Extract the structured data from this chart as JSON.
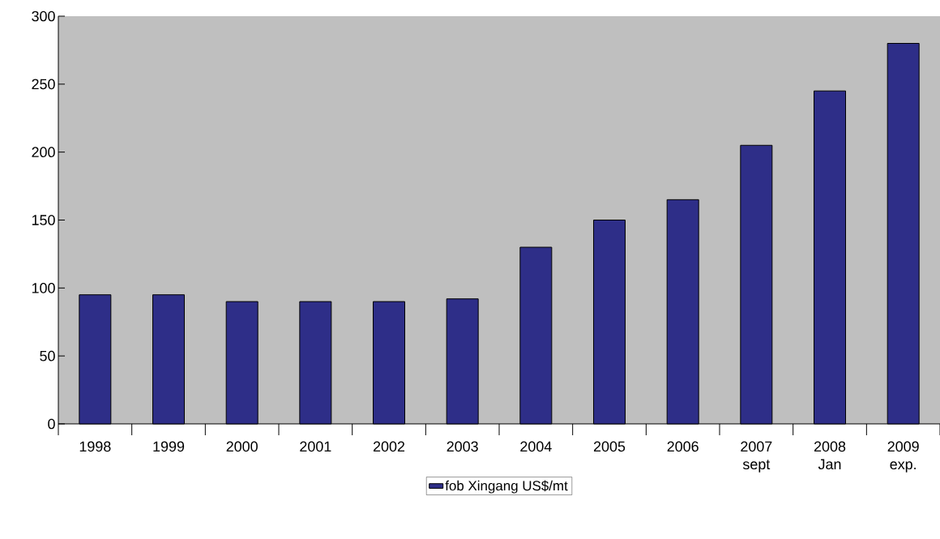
{
  "chart_data": {
    "type": "bar",
    "categories": [
      "1998",
      "1999",
      "2000",
      "2001",
      "2002",
      "2003",
      "2004",
      "2005",
      "2006",
      "2007 sept",
      "2008 Jan",
      "2009 exp."
    ],
    "series": [
      {
        "name": "fob Xingang US$/mt",
        "color": "#2e2e88",
        "values": [
          95,
          95,
          90,
          90,
          90,
          92,
          130,
          150,
          165,
          205,
          245,
          280
        ]
      }
    ],
    "ylim": [
      0,
      300
    ],
    "yticks": [
      0,
      50,
      100,
      150,
      200,
      250,
      300
    ],
    "grid": false,
    "legend": "bottom"
  }
}
